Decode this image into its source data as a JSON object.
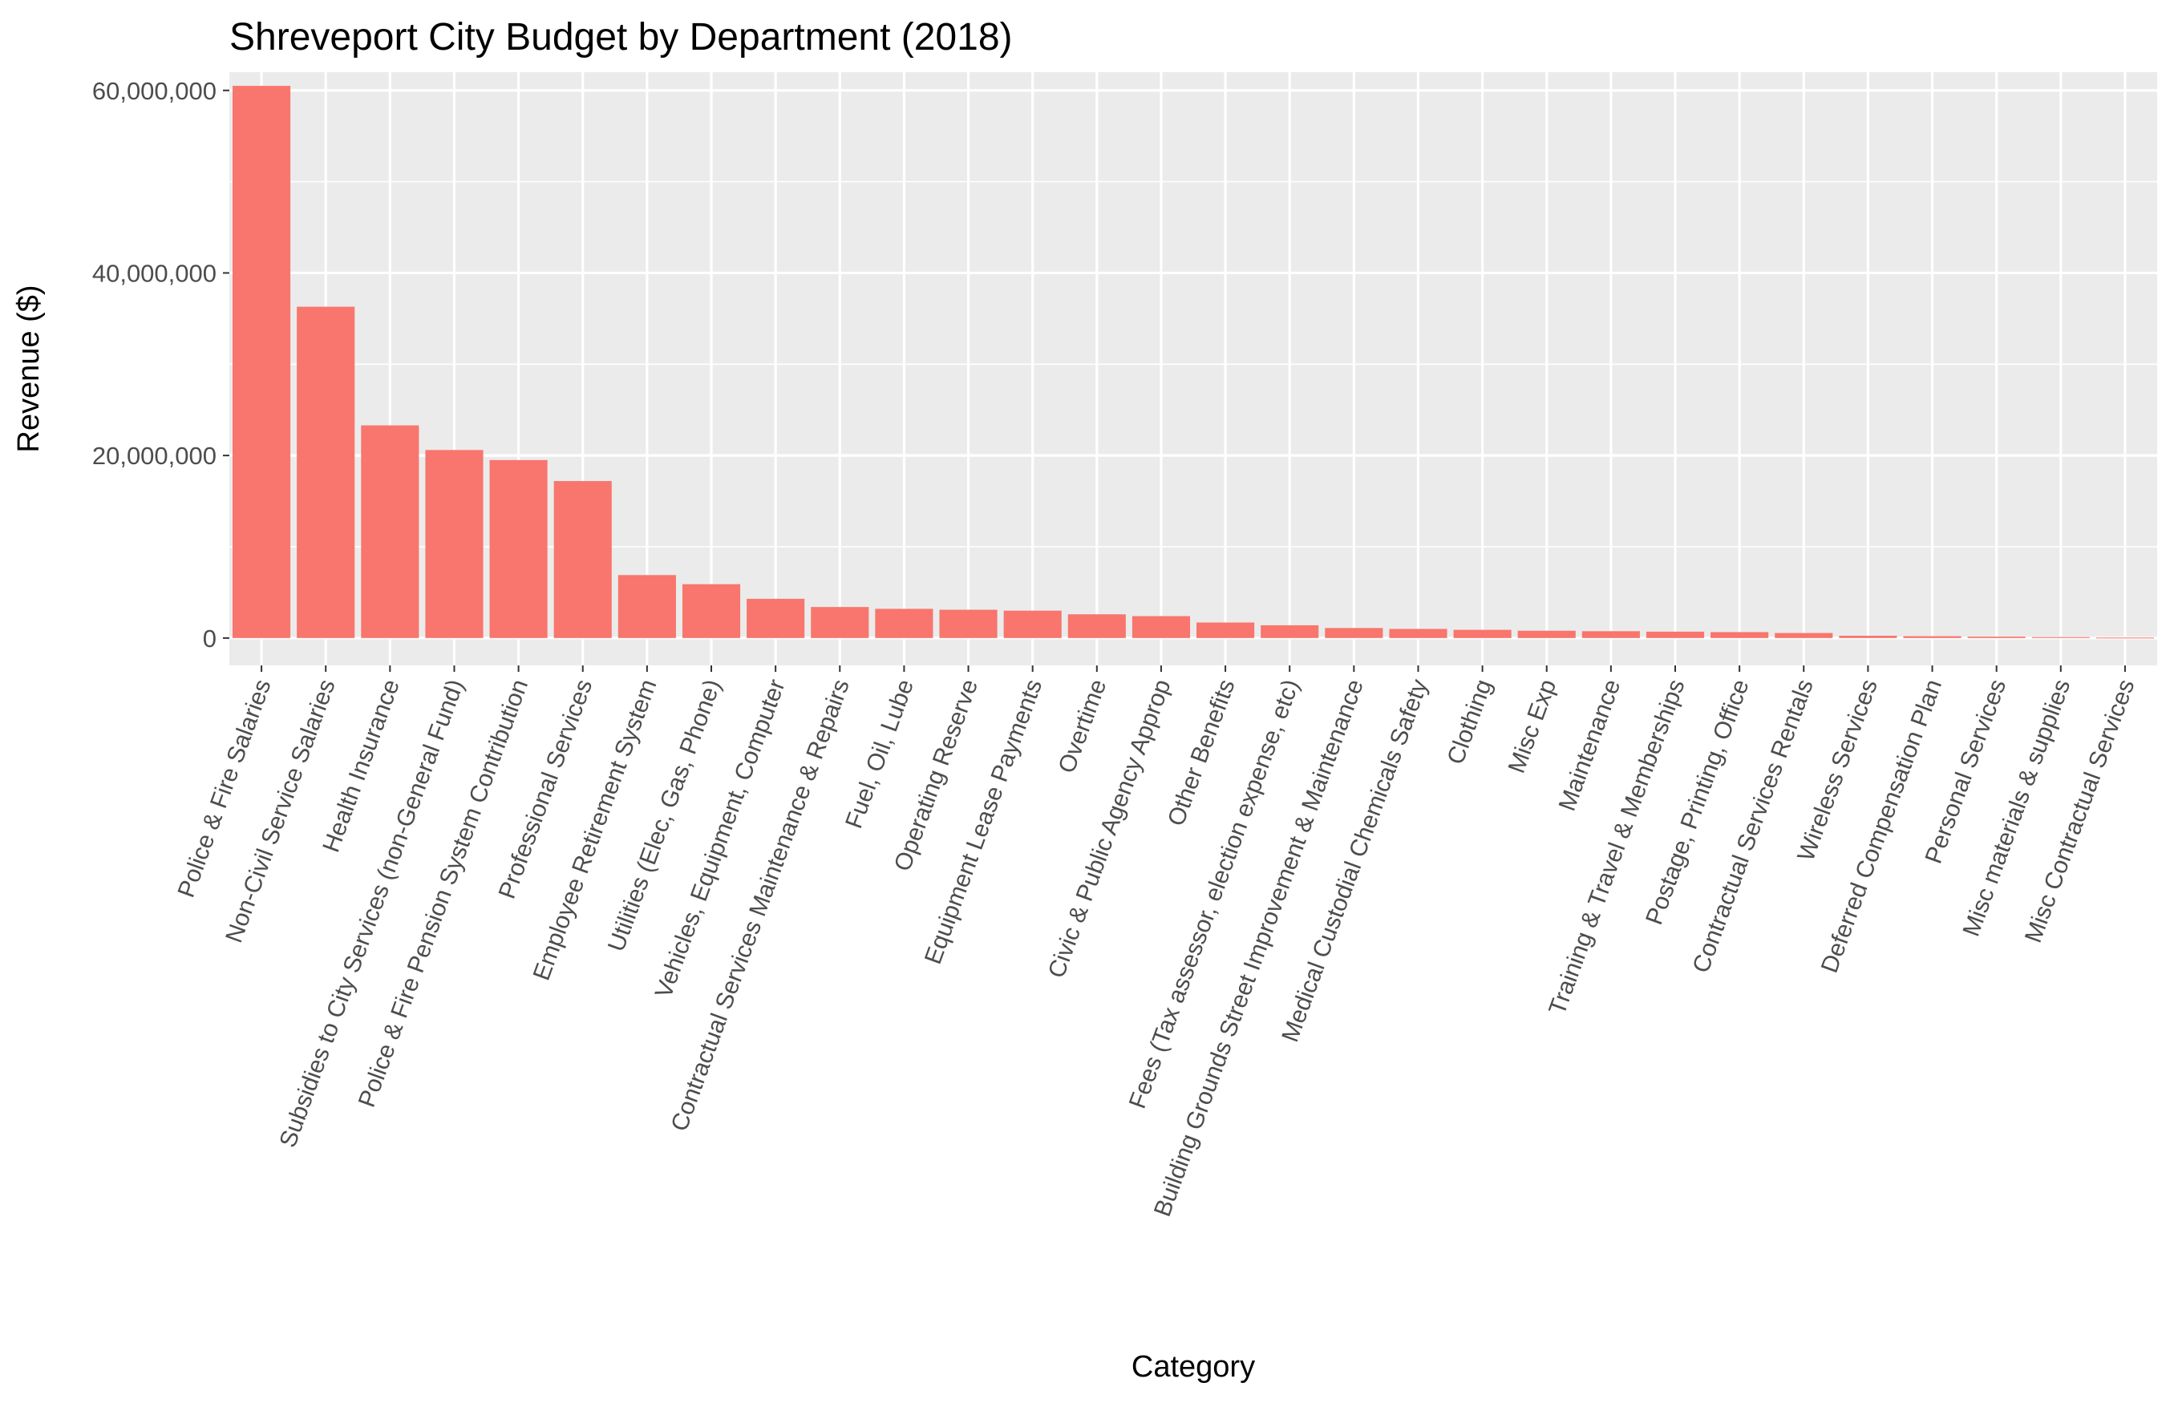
{
  "chart_data": {
    "type": "bar",
    "title": "Shreveport City Budget by Department (2018)",
    "xlabel": "Category",
    "ylabel": "Revenue ($)",
    "ylim": [
      -3000000,
      62000000
    ],
    "yticks": [
      0,
      20000000,
      40000000,
      60000000
    ],
    "ytick_labels": [
      "0",
      "20,000,000",
      "40,000,000",
      "60,000,000"
    ],
    "grid": true,
    "legend": "none",
    "bar_color": "#F8766D",
    "panel_background": "#EBEBEB",
    "grid_color": "#FFFFFF",
    "categories": [
      "Police & Fire Salaries",
      "Non-Civil Service Salaries",
      "Health Insurance",
      "Subsidies to City Services (non-General Fund)",
      "Police & Fire Pension System Contribution",
      "Professional Services",
      "Employee Retirement System",
      "Utilities (Elec, Gas, Phone)",
      "Vehicles, Equipment, Computer",
      "Contractual Services Maintenance & Repairs",
      "Fuel, Oil, Lube",
      "Operating Reserve",
      "Equipment Lease Payments",
      "Overtime",
      "Civic & Public Agency Approp",
      "Other Benefits",
      "Fees (Tax assessor, election expense, etc)",
      "Building Grounds Street Improvement & Maintenance",
      "Medical Custodial Chemicals Safety",
      "Clothing",
      "Misc Exp",
      "Maintenance",
      "Training & Travel & Memberships",
      "Postage, Printing, Office",
      "Contractual Services Rentals",
      "Wireless Services",
      "Deferred Compensation Plan",
      "Personal Services",
      "Misc materials & supplies",
      "Misc Contractual Services"
    ],
    "values": [
      60500000,
      36300000,
      23300000,
      20600000,
      19500000,
      17200000,
      6900000,
      5900000,
      4300000,
      3400000,
      3200000,
      3100000,
      3000000,
      2600000,
      2400000,
      1700000,
      1400000,
      1100000,
      1000000,
      900000,
      800000,
      750000,
      700000,
      650000,
      550000,
      250000,
      200000,
      150000,
      100000,
      50000
    ]
  }
}
